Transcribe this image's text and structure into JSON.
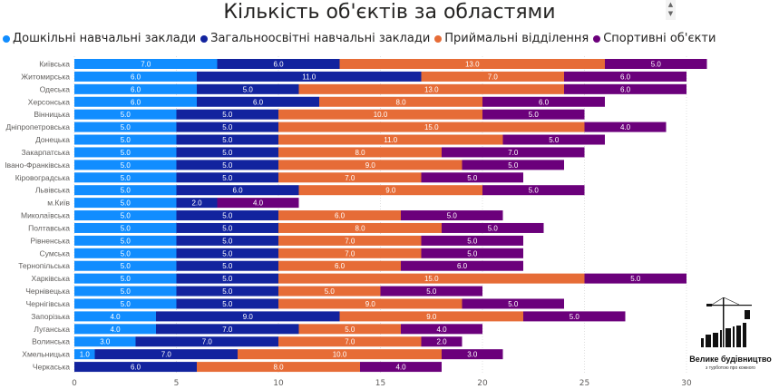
{
  "chart_data": {
    "type": "bar",
    "orientation": "horizontal",
    "stacked": true,
    "title": "Кількість об'єктів за областями",
    "categories": [
      "Київська",
      "Житомирська",
      "Одеська",
      "Херсонська",
      "Вінницька",
      "Дніпропетровська",
      "Донецька",
      "Закарпатська",
      "Івано-Франківська",
      "Кіровоградська",
      "Львівська",
      "м.Київ",
      "Миколаївська",
      "Полтавська",
      "Рівненська",
      "Сумська",
      "Тернопільська",
      "Харківська",
      "Чернівецька",
      "Чернігівська",
      "Запорізька",
      "Луганська",
      "Волинська",
      "Хмельницька",
      "Черкаська"
    ],
    "series": [
      {
        "name": "Дошкільні навчальні заклади",
        "color": "#118DFF",
        "values": [
          7,
          6,
          6,
          6,
          5,
          5,
          5,
          5,
          5,
          5,
          5,
          5,
          5,
          5,
          5,
          5,
          5,
          5,
          5,
          5,
          4,
          4,
          3,
          1,
          0
        ]
      },
      {
        "name": "Загальноосвітні навчальні заклади",
        "color": "#12239E",
        "values": [
          6,
          11,
          5,
          6,
          5,
          5,
          5,
          5,
          5,
          5,
          6,
          2,
          5,
          5,
          5,
          5,
          5,
          5,
          5,
          5,
          9,
          7,
          7,
          7,
          6
        ]
      },
      {
        "name": "Приймальні відділення",
        "color": "#E66C37",
        "values": [
          13,
          7,
          13,
          8,
          10,
          15,
          11,
          8,
          9,
          7,
          9,
          0,
          6,
          8,
          7,
          7,
          6,
          15,
          5,
          9,
          9,
          5,
          7,
          10,
          8
        ]
      },
      {
        "name": "Спортивні об'єкти",
        "color": "#6B007B",
        "values": [
          5,
          6,
          6,
          6,
          5,
          4,
          5,
          7,
          5,
          5,
          5,
          4,
          5,
          5,
          5,
          5,
          6,
          5,
          5,
          5,
          5,
          4,
          2,
          3,
          4
        ]
      }
    ],
    "xlim": [
      0,
      31
    ],
    "xticks": [
      "0",
      "5",
      "10",
      "15",
      "20",
      "25",
      "30"
    ],
    "grid": true,
    "legend": "top-left",
    "data_labels": true
  },
  "logo": {
    "name": "Велике будівництво",
    "tagline": "з турботою про кожного"
  },
  "scroll": {
    "up": "▲",
    "down": "▼"
  }
}
